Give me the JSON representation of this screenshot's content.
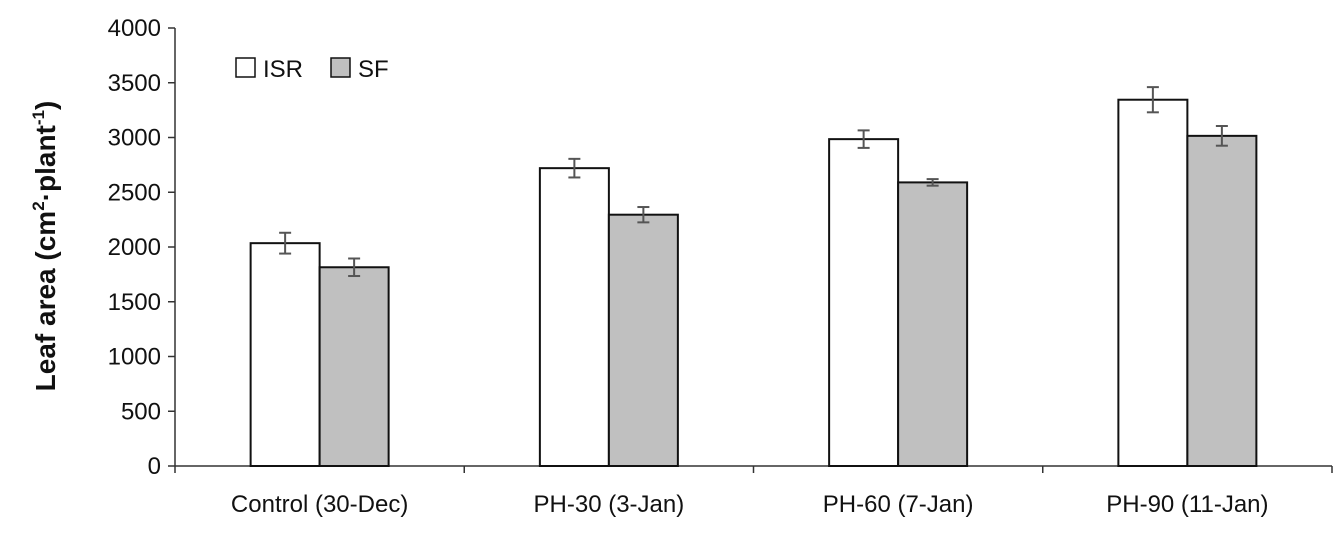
{
  "chart_data": {
    "type": "bar",
    "categories": [
      "Control (30-Dec)",
      "PH-30 (3-Jan)",
      "PH-60 (7-Jan)",
      "PH-90 (11-Jan)"
    ],
    "series": [
      {
        "name": "ISR",
        "values": [
          2035,
          2720,
          2985,
          3345
        ],
        "errors": [
          95,
          85,
          80,
          115
        ],
        "color": "#ffffff"
      },
      {
        "name": "SF",
        "values": [
          1815,
          2295,
          2590,
          3015
        ],
        "errors": [
          80,
          70,
          30,
          90
        ],
        "color": "#c0c0c0"
      }
    ],
    "ylabel": {
      "main": "Leaf area (cm",
      "sup1": "2",
      "mid": "·plant",
      "sup2": "-1",
      "end": ")"
    },
    "ylim": [
      0,
      4000
    ],
    "yticks": [
      0,
      500,
      1000,
      1500,
      2000,
      2500,
      3000,
      3500,
      4000
    ],
    "grid": false,
    "legend_position": "top-left",
    "error_bar_color": "#555555"
  }
}
